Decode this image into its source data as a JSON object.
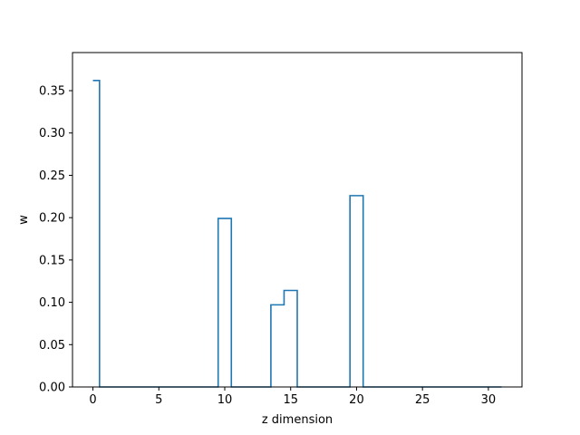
{
  "chart_data": {
    "type": "line",
    "step": "mid",
    "title": "",
    "xlabel": "z dimension",
    "ylabel": "w",
    "xlim": [
      -1.55,
      32.55
    ],
    "ylim": [
      0.0,
      0.395
    ],
    "xticks": [
      0,
      5,
      10,
      15,
      20,
      25,
      30
    ],
    "yticks": [
      0.0,
      0.05,
      0.1,
      0.15,
      0.2,
      0.25,
      0.3,
      0.35
    ],
    "ytick_labels": [
      "0.00",
      "0.05",
      "0.10",
      "0.15",
      "0.20",
      "0.25",
      "0.30",
      "0.35"
    ],
    "grid": false,
    "series_color": "#1f77b4",
    "x": [
      0,
      1,
      2,
      3,
      4,
      5,
      6,
      7,
      8,
      9,
      10,
      11,
      12,
      13,
      14,
      15,
      16,
      17,
      18,
      19,
      20,
      21,
      22,
      23,
      24,
      25,
      26,
      27,
      28,
      29,
      30,
      31
    ],
    "y": [
      0.362,
      0,
      0,
      0,
      0,
      0,
      0,
      0,
      0,
      0,
      0.199,
      0,
      0,
      0,
      0.097,
      0.114,
      0,
      0,
      0,
      0,
      0.226,
      0,
      0,
      0,
      0,
      0,
      0,
      0,
      0,
      0,
      0,
      0
    ]
  }
}
